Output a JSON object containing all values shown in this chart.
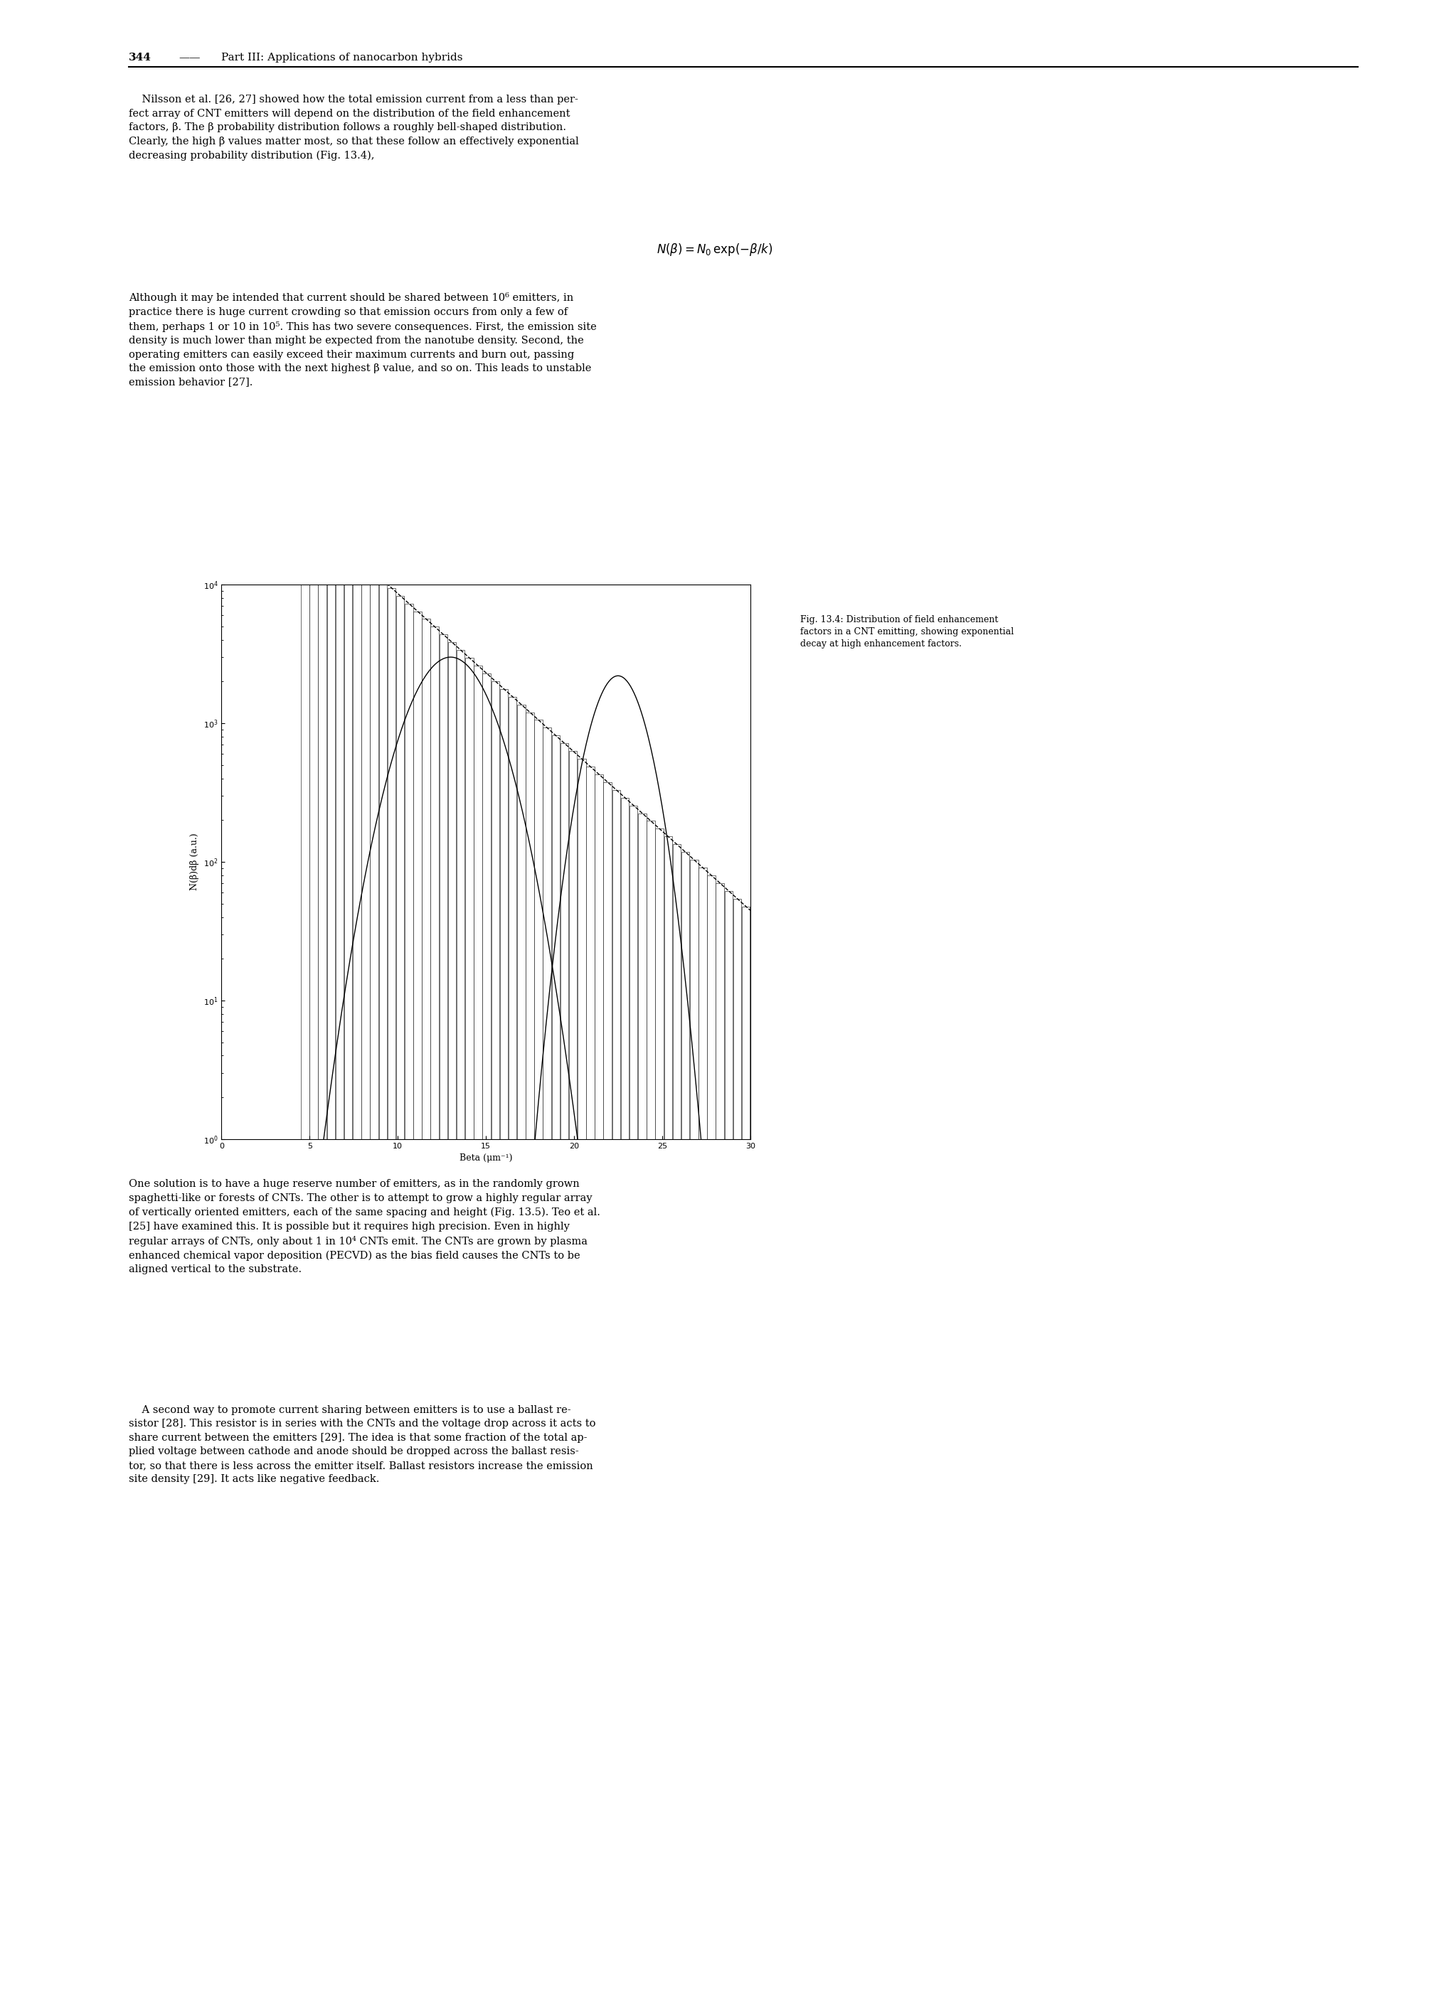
{
  "page_width": 20.09,
  "page_height": 28.35,
  "page_dpi": 100,
  "bg_color": "#ffffff",
  "header_text": "344 —— Part III: Applications of nanocarbon hybrids",
  "para1": "Nilsson et al. [26, 27] showed how the total emission current from a less than per-\nfect array of CNT emitters will depend on the distribution of the field enhancement\nfactors, β. The β probability distribution follows a roughly bell-shaped distribution.\nClearly, the high β values matter most, so that these follow an effectively exponential\ndecreasing probability distribution (Fig. 13.4),",
  "equation": "N(β) = N₀ exp(−β/k)",
  "para2": "Although it may be intended that current should be shared between 10⁶ emitters, in\npractice there is huge current crowding so that emission occurs from only a few of\nthem, perhaps 1 or 10 in 10⁵. This has two severe consequences. First, the emission site\ndensity is much lower than might be expected from the nanotube density. Second, the\noperating emitters can easily exceed their maximum currents and burn out, passing\nthe emission onto those with the next highest β value, and so on. This leads to unstable\nemission behavior [27].",
  "caption": "Fig. 13.4: Distribution of field enhancement\nfactors in a CNT emitting, showing exponential\ndecay at high enhancement factors.",
  "para3": "One solution is to have a huge reserve number of emitters, as in the randomly grown\nspaghetti-like or forests of CNTs. The other is to attempt to grow a highly regular array\nof vertically oriented emitters, each of the same spacing and height (Fig. 13.5). Teo et al.\n[25] have examined this. It is possible but it requires high precision. Even in highly\nregular arrays of CNTs, only about 1 in 10⁴ CNTs emit. The CNTs are grown by plasma\nenhanced chemical vapor deposition (PECVD) as the bias field causes the CNTs to be\naligned vertical to the substrate.",
  "para4": "    A second way to promote current sharing between emitters is to use a ballast re-\nsistor [28]. This resistor is in series with the CNTs and the voltage drop across it acts to\nshare current between the emitters [29]. The idea is that some fraction of the total ap-\nplied voltage between cathode and anode should be dropped across the ballast resis-\ntor, so that there is less across the emitter itself. Ballast resistors increase the emission\nsite density [29]. It acts like negative feedback.",
  "xlabel": "Beta (μm⁻¹)",
  "ylabel": "N(β)dβ (a.u.)",
  "xlim": [
    0,
    30
  ],
  "ylim": [
    1.0,
    10000.0
  ],
  "xticks": [
    0,
    5,
    10,
    15,
    20,
    25,
    30
  ],
  "bell_peak": 13.0,
  "bell_sigma": 1.8,
  "bell_amplitude": 3000,
  "bell2_peak": 22.5,
  "bell2_sigma": 1.2,
  "bell2_amplitude": 2200,
  "exp_k": 3.8,
  "exp_amplitude": 120000,
  "bar_start": 4.5,
  "bar_end": 30.0,
  "n_bars": 52,
  "bar_color": "white",
  "bar_edgecolor": "black",
  "dashed_start": 5.0,
  "dashed_end": 30.0
}
